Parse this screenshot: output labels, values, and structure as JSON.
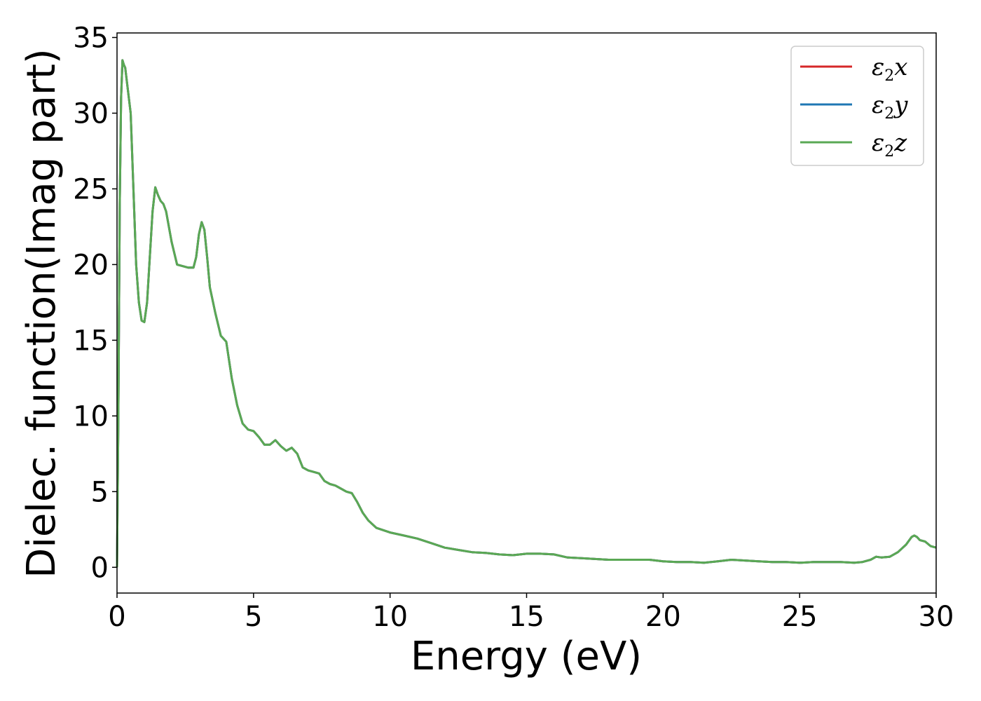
{
  "chart_data": {
    "type": "line",
    "xlabel": "Energy (eV)",
    "ylabel": "Dielec. function(Imag part)",
    "xlim": [
      0,
      30
    ],
    "ylim": [
      -1.7,
      35.3
    ],
    "xticks": [
      "0",
      "5",
      "10",
      "15",
      "20",
      "25",
      "30"
    ],
    "yticks": [
      "0",
      "5",
      "10",
      "15",
      "20",
      "25",
      "30",
      "35"
    ],
    "grid": false,
    "legend_position": "top-right",
    "x": [
      0,
      0.05,
      0.1,
      0.15,
      0.2,
      0.25,
      0.3,
      0.4,
      0.5,
      0.6,
      0.7,
      0.8,
      0.9,
      1.0,
      1.1,
      1.2,
      1.3,
      1.4,
      1.5,
      1.6,
      1.7,
      1.8,
      2.0,
      2.2,
      2.4,
      2.6,
      2.8,
      2.9,
      3.0,
      3.1,
      3.2,
      3.3,
      3.4,
      3.6,
      3.8,
      4.0,
      4.2,
      4.4,
      4.6,
      4.8,
      5.0,
      5.2,
      5.4,
      5.6,
      5.8,
      6.0,
      6.2,
      6.4,
      6.6,
      6.8,
      7.0,
      7.2,
      7.4,
      7.6,
      7.8,
      8.0,
      8.2,
      8.4,
      8.6,
      8.8,
      9.0,
      9.2,
      9.5,
      10.0,
      10.5,
      11.0,
      11.5,
      12.0,
      12.5,
      13.0,
      13.5,
      14.0,
      14.5,
      15.0,
      15.5,
      16.0,
      16.5,
      17.0,
      17.5,
      18.0,
      18.5,
      19.0,
      19.5,
      20.0,
      20.5,
      21.0,
      21.5,
      22.0,
      22.5,
      23.0,
      23.5,
      24.0,
      24.5,
      25.0,
      25.5,
      26.0,
      26.5,
      27.0,
      27.3,
      27.6,
      27.8,
      28.0,
      28.3,
      28.6,
      28.9,
      29.1,
      29.2,
      29.3,
      29.4,
      29.6,
      29.8,
      30.0
    ],
    "series": [
      {
        "name": "x",
        "color": "#d62728",
        "values": [
          0,
          10,
          24,
          31,
          33.5,
          33.2,
          33.0,
          31.5,
          30.0,
          25.0,
          20.0,
          17.5,
          16.3,
          16.2,
          17.5,
          20.5,
          23.5,
          25.1,
          24.6,
          24.2,
          24.0,
          23.5,
          21.5,
          20.0,
          19.9,
          19.8,
          19.8,
          20.5,
          22.0,
          22.8,
          22.3,
          20.5,
          18.5,
          16.8,
          15.3,
          14.9,
          12.5,
          10.7,
          9.5,
          9.1,
          9.0,
          8.6,
          8.1,
          8.1,
          8.4,
          8.0,
          7.7,
          7.9,
          7.5,
          6.6,
          6.4,
          6.3,
          6.2,
          5.7,
          5.5,
          5.4,
          5.2,
          5.0,
          4.9,
          4.3,
          3.6,
          3.1,
          2.6,
          2.3,
          2.1,
          1.9,
          1.6,
          1.3,
          1.15,
          1.0,
          0.95,
          0.85,
          0.8,
          0.9,
          0.9,
          0.85,
          0.65,
          0.6,
          0.55,
          0.5,
          0.5,
          0.5,
          0.5,
          0.4,
          0.35,
          0.35,
          0.3,
          0.4,
          0.5,
          0.45,
          0.4,
          0.35,
          0.35,
          0.3,
          0.35,
          0.35,
          0.35,
          0.3,
          0.35,
          0.5,
          0.7,
          0.65,
          0.7,
          1.0,
          1.5,
          2.0,
          2.1,
          2.0,
          1.8,
          1.7,
          1.4,
          1.3
        ]
      },
      {
        "name": "y",
        "color": "#1f77b4",
        "values": [
          0,
          10,
          24,
          31,
          33.5,
          33.2,
          33.0,
          31.5,
          30.0,
          25.0,
          20.0,
          17.5,
          16.3,
          16.2,
          17.5,
          20.5,
          23.5,
          25.1,
          24.6,
          24.2,
          24.0,
          23.5,
          21.5,
          20.0,
          19.9,
          19.8,
          19.8,
          20.5,
          22.0,
          22.8,
          22.3,
          20.5,
          18.5,
          16.8,
          15.3,
          14.9,
          12.5,
          10.7,
          9.5,
          9.1,
          9.0,
          8.6,
          8.1,
          8.1,
          8.4,
          8.0,
          7.7,
          7.9,
          7.5,
          6.6,
          6.4,
          6.3,
          6.2,
          5.7,
          5.5,
          5.4,
          5.2,
          5.0,
          4.9,
          4.3,
          3.6,
          3.1,
          2.6,
          2.3,
          2.1,
          1.9,
          1.6,
          1.3,
          1.15,
          1.0,
          0.95,
          0.85,
          0.8,
          0.9,
          0.9,
          0.85,
          0.65,
          0.6,
          0.55,
          0.5,
          0.5,
          0.5,
          0.5,
          0.4,
          0.35,
          0.35,
          0.3,
          0.4,
          0.5,
          0.45,
          0.4,
          0.35,
          0.35,
          0.3,
          0.35,
          0.35,
          0.35,
          0.3,
          0.35,
          0.5,
          0.7,
          0.65,
          0.7,
          1.0,
          1.5,
          2.0,
          2.1,
          2.0,
          1.8,
          1.7,
          1.4,
          1.3
        ]
      },
      {
        "name": "z",
        "color": "#5aa854",
        "values": [
          0,
          10,
          24,
          31,
          33.5,
          33.2,
          33.0,
          31.5,
          30.0,
          25.0,
          20.0,
          17.5,
          16.3,
          16.2,
          17.5,
          20.5,
          23.5,
          25.1,
          24.6,
          24.2,
          24.0,
          23.5,
          21.5,
          20.0,
          19.9,
          19.8,
          19.8,
          20.5,
          22.0,
          22.8,
          22.3,
          20.5,
          18.5,
          16.8,
          15.3,
          14.9,
          12.5,
          10.7,
          9.5,
          9.1,
          9.0,
          8.6,
          8.1,
          8.1,
          8.4,
          8.0,
          7.7,
          7.9,
          7.5,
          6.6,
          6.4,
          6.3,
          6.2,
          5.7,
          5.5,
          5.4,
          5.2,
          5.0,
          4.9,
          4.3,
          3.6,
          3.1,
          2.6,
          2.3,
          2.1,
          1.9,
          1.6,
          1.3,
          1.15,
          1.0,
          0.95,
          0.85,
          0.8,
          0.9,
          0.9,
          0.85,
          0.65,
          0.6,
          0.55,
          0.5,
          0.5,
          0.5,
          0.5,
          0.4,
          0.35,
          0.35,
          0.3,
          0.4,
          0.5,
          0.45,
          0.4,
          0.35,
          0.35,
          0.3,
          0.35,
          0.35,
          0.35,
          0.3,
          0.35,
          0.5,
          0.7,
          0.65,
          0.7,
          1.0,
          1.5,
          2.0,
          2.1,
          2.0,
          1.8,
          1.7,
          1.4,
          1.3
        ]
      }
    ]
  },
  "legend": {
    "symbol": "ε",
    "subscript": "2",
    "entries": [
      "x",
      "y",
      "z"
    ]
  }
}
